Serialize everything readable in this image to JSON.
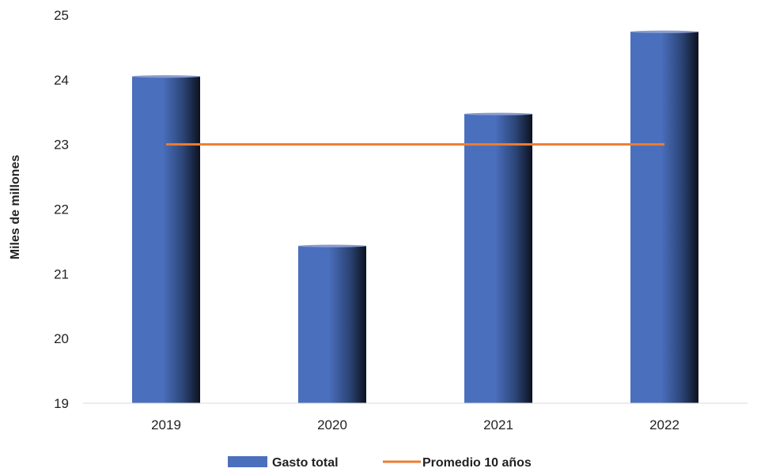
{
  "chart_data": {
    "type": "bar",
    "ylabel": "Miles de millones",
    "xlabel": "",
    "ylim": [
      19,
      25
    ],
    "yticks": [
      19,
      20,
      21,
      22,
      23,
      24,
      25
    ],
    "categories": [
      "2019",
      "2020",
      "2021",
      "2022"
    ],
    "series": [
      {
        "name": "Gasto total",
        "type": "bar",
        "color": "#4a6fbd",
        "values": [
          24.05,
          21.43,
          23.47,
          24.74
        ]
      },
      {
        "name": "Promedio 10 años",
        "type": "line",
        "color": "#ed7d31",
        "values": [
          23.0,
          23.0,
          23.0,
          23.0
        ]
      }
    ],
    "grid": false,
    "legend_position": "bottom"
  }
}
